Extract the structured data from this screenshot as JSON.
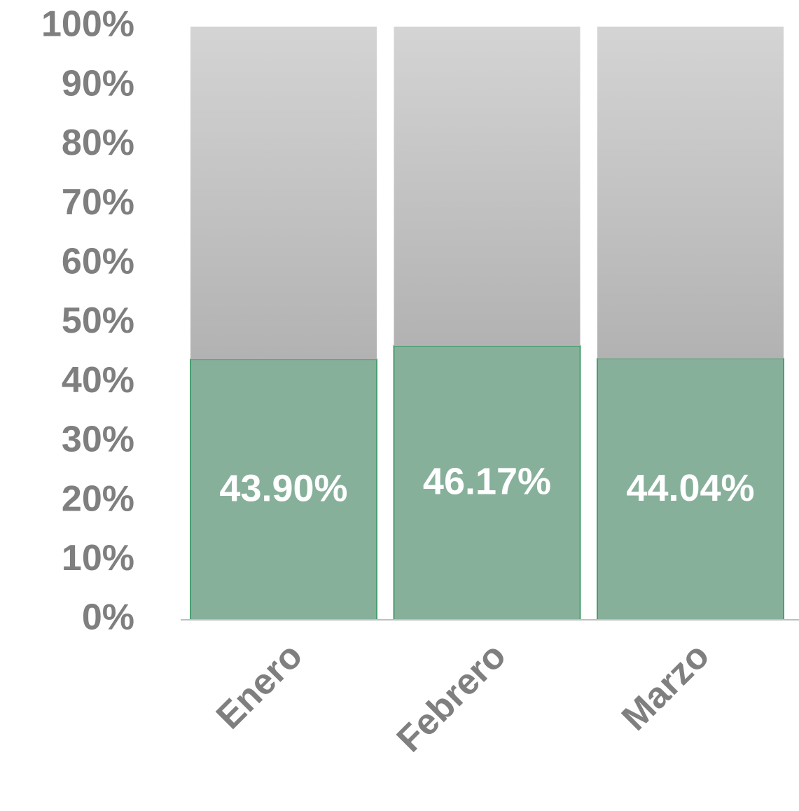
{
  "chart_data": {
    "type": "stacked_bar_100",
    "categories": [
      "Enero",
      "Febrero",
      "Marzo"
    ],
    "series": [
      {
        "color": "#87b09b",
        "values": [
          43.9,
          46.17,
          44.04
        ],
        "value_labels": [
          "43.90%",
          "46.17%",
          "44.04%"
        ]
      },
      {
        "color": "#c4c4c4",
        "values": [
          56.1,
          53.83,
          55.96
        ]
      }
    ],
    "ylim": [
      0,
      100
    ],
    "yticks": [
      {
        "value": 0,
        "label": "0%"
      },
      {
        "value": 10,
        "label": "10%"
      },
      {
        "value": 20,
        "label": "20%"
      },
      {
        "value": 30,
        "label": "30%"
      },
      {
        "value": 40,
        "label": "40%"
      },
      {
        "value": 50,
        "label": "50%"
      },
      {
        "value": 60,
        "label": "60%"
      },
      {
        "value": 70,
        "label": "70%"
      },
      {
        "value": 80,
        "label": "80%"
      },
      {
        "value": 90,
        "label": "90%"
      },
      {
        "value": 100,
        "label": "100%"
      }
    ]
  }
}
